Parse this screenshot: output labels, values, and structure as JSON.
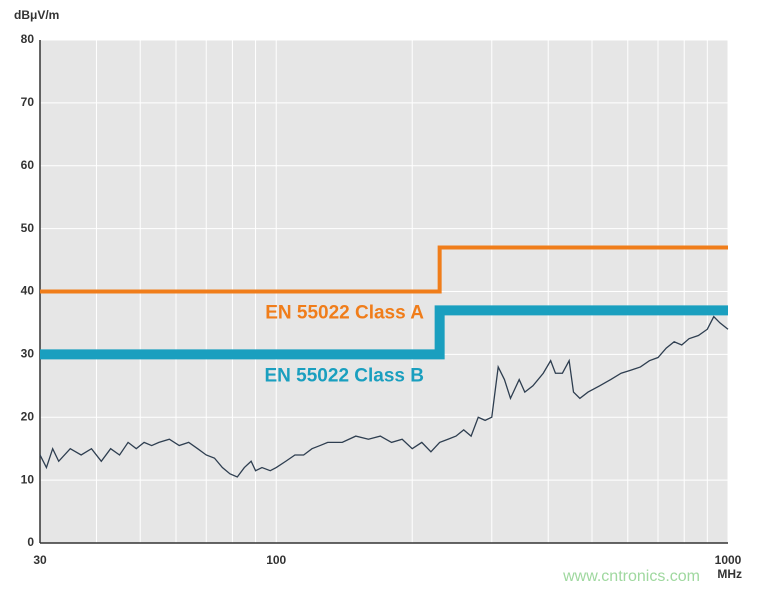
{
  "chart_data": {
    "type": "line",
    "y_label": "dBμV/m",
    "x_label": "MHz",
    "watermark": "www.cntronics.com",
    "log_x": true,
    "grid": true,
    "xlim": [
      30,
      1000
    ],
    "xticks": [
      30,
      100,
      1000
    ],
    "xminorticks": [
      40,
      50,
      60,
      70,
      80,
      90,
      200,
      300,
      400,
      500,
      600,
      700,
      800,
      900
    ],
    "ylim": [
      0,
      80
    ],
    "yticks": [
      0,
      10,
      20,
      30,
      40,
      50,
      60,
      70,
      80
    ],
    "series": [
      {
        "name": "EN 55022 Class A",
        "color": "#f07d1a",
        "width": 4,
        "x": [
          30,
          230,
          230,
          1000
        ],
        "values": [
          40,
          40,
          47,
          47
        ]
      },
      {
        "name": "EN 55022 Class B",
        "color": "#1a9fbf",
        "width": 10,
        "x": [
          30,
          230,
          230,
          1000
        ],
        "values": [
          30,
          30,
          37,
          37
        ]
      },
      {
        "name": null,
        "color": "#2e3e50",
        "width": 1.3,
        "x": [
          30,
          31,
          32,
          33,
          35,
          37,
          39,
          41,
          43,
          45,
          47,
          49,
          51,
          53,
          55,
          58,
          61,
          64,
          67,
          70,
          73,
          76,
          79,
          82,
          85,
          88,
          90,
          93,
          97,
          100,
          105,
          110,
          115,
          120,
          125,
          130,
          140,
          150,
          160,
          170,
          180,
          190,
          200,
          210,
          220,
          230,
          240,
          250,
          260,
          270,
          280,
          290,
          300,
          310,
          320,
          330,
          345,
          355,
          370,
          390,
          405,
          415,
          430,
          445,
          455,
          470,
          490,
          520,
          550,
          580,
          610,
          640,
          670,
          700,
          730,
          760,
          790,
          820,
          860,
          900,
          930,
          960,
          1000
        ],
        "values": [
          14,
          12,
          15,
          13,
          15,
          14,
          15,
          13,
          15,
          14,
          16,
          15,
          16,
          15.5,
          16,
          16.5,
          15.5,
          16,
          15,
          14,
          13.5,
          12,
          11,
          10.5,
          12,
          13,
          11.5,
          12,
          11.5,
          12,
          13,
          14,
          14,
          15,
          15.5,
          16,
          16,
          17,
          16.5,
          17,
          16,
          16.5,
          15,
          16,
          14.5,
          16,
          16.5,
          17,
          18,
          17,
          20,
          19.5,
          20,
          28,
          26,
          23,
          26,
          24,
          25,
          27,
          29,
          27,
          27,
          29,
          24,
          23,
          24,
          25,
          26,
          27,
          27.5,
          28,
          29,
          29.5,
          31,
          32,
          31.5,
          32.5,
          33,
          34,
          36,
          35,
          34
        ]
      }
    ]
  }
}
